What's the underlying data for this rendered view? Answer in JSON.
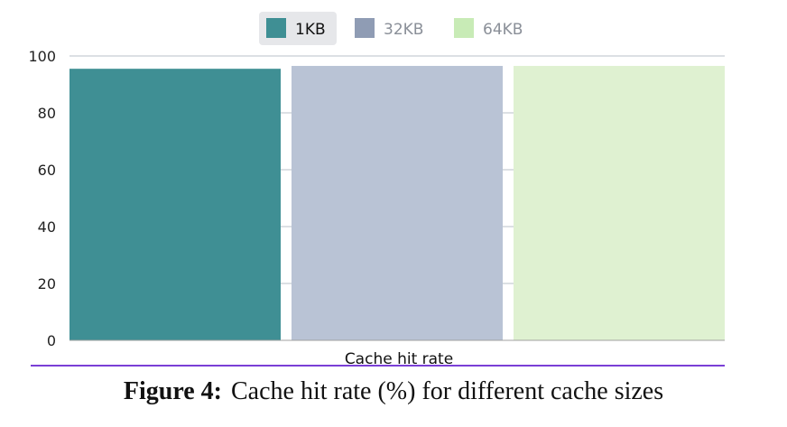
{
  "chart_data": {
    "type": "bar",
    "categories": [
      "Cache hit rate"
    ],
    "series": [
      {
        "name": "1KB",
        "values": [
          95.5
        ]
      },
      {
        "name": "32KB",
        "values": [
          96.5
        ]
      },
      {
        "name": "64KB",
        "values": [
          96.5
        ]
      }
    ],
    "xlabel": "Cache hit rate",
    "ylabel": "",
    "ylim": [
      0,
      100
    ],
    "yticks": [
      0,
      20,
      40,
      60,
      80,
      100
    ],
    "grid": true,
    "legend_position": "top-center",
    "selected_legend_index": 0
  },
  "colors": {
    "1KB": "#3f8f94",
    "32KB": "#b9c3d5",
    "32KB_legend": "#8f9cb4",
    "64KB": "#dff1d1",
    "64KB_legend": "#c8ebb6",
    "gridline": "#b9c0c8",
    "baseline": "#a0a0a0",
    "divider": "#7a3fd6",
    "legend_selected_bg": "#e6e7ea"
  },
  "caption": {
    "label": "Figure 4:",
    "text": "Cache hit rate (%) for different cache sizes"
  }
}
